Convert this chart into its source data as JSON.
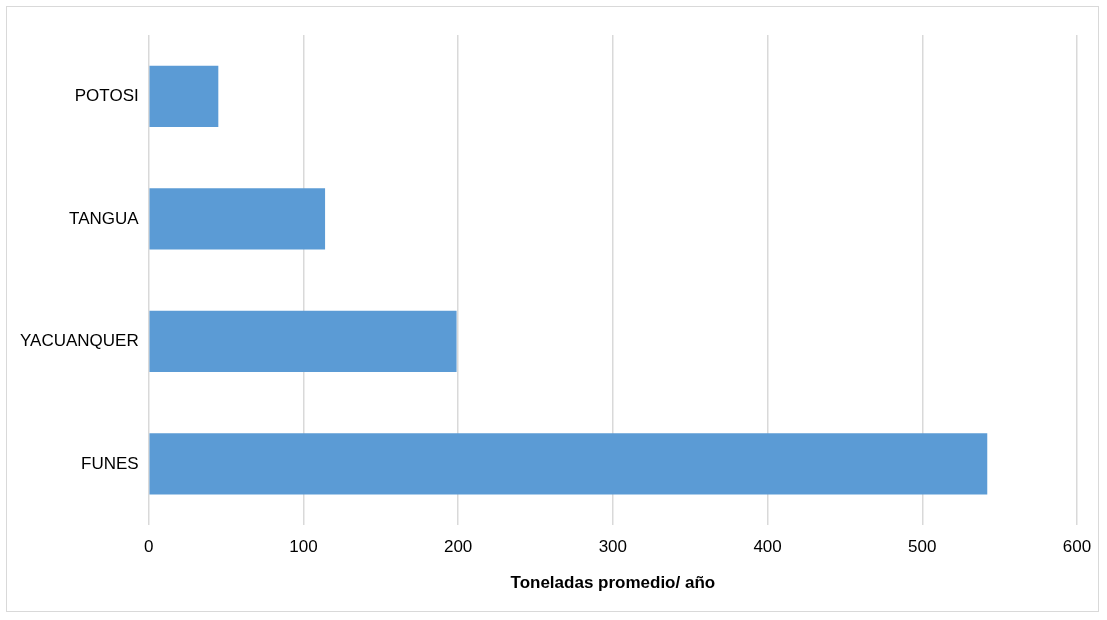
{
  "chart_data": {
    "type": "bar",
    "orientation": "horizontal",
    "xlabel": "Toneladas promedio/ año",
    "categories": [
      "POTOSI",
      "TANGUA",
      "YACUANQUER",
      "FUNES"
    ],
    "values": [
      45,
      114,
      199,
      542
    ],
    "color": "#5b9bd5",
    "xlim": [
      0,
      600
    ],
    "xticks": [
      0,
      100,
      200,
      300,
      400,
      500,
      600
    ],
    "grid": "x",
    "legend": false
  }
}
